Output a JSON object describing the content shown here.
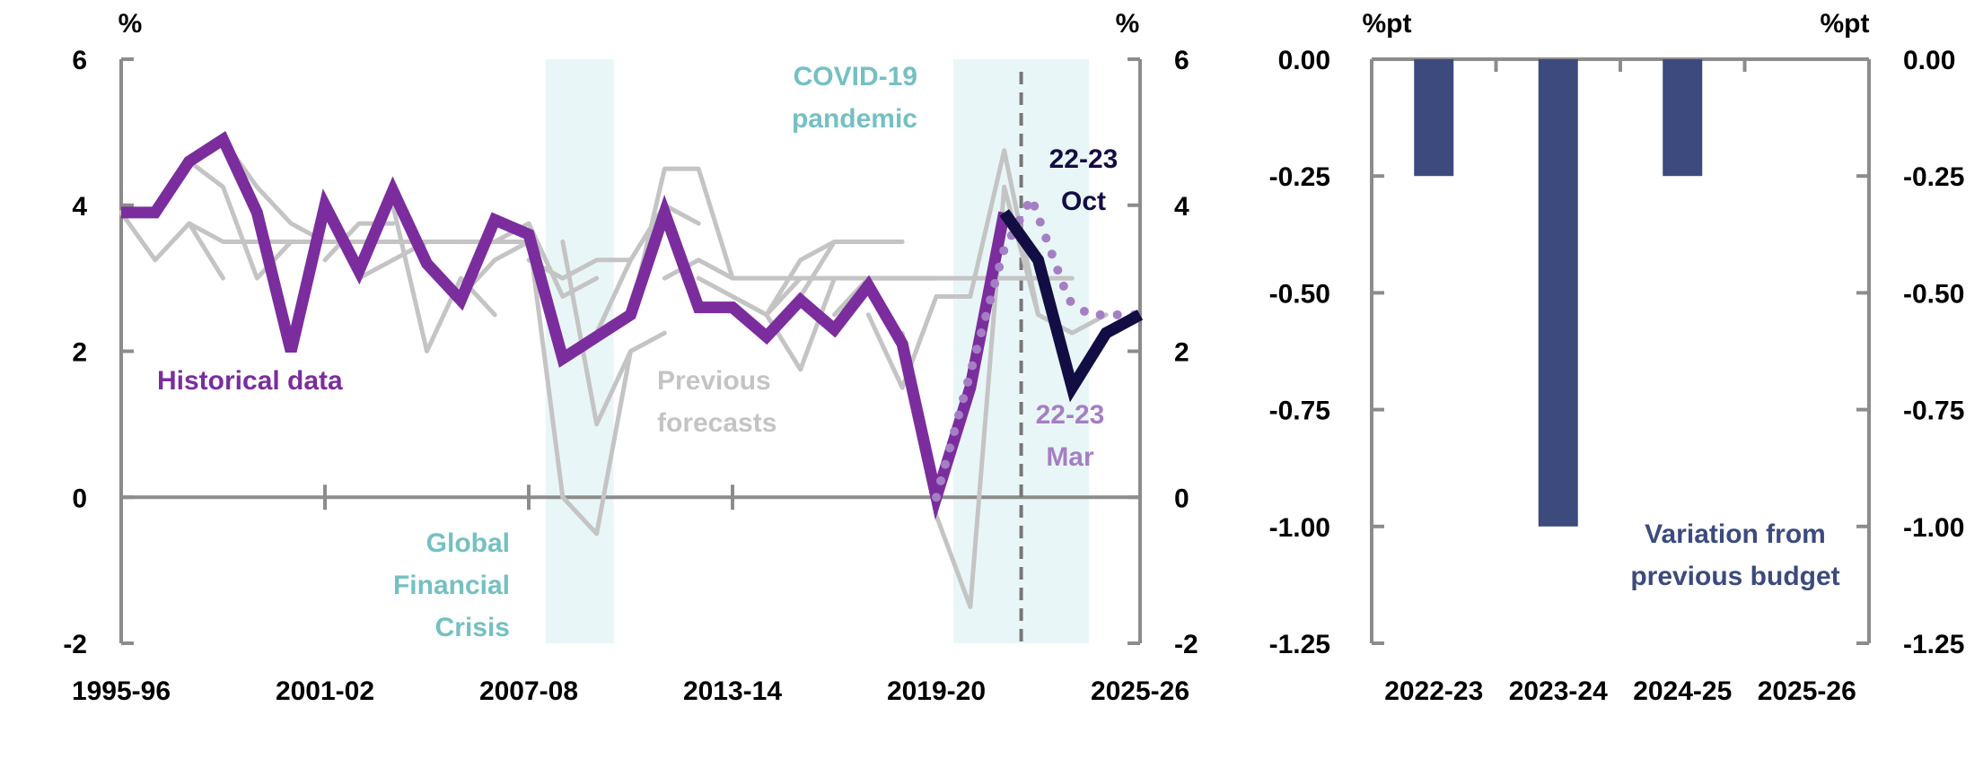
{
  "colors": {
    "historical": "#7b2d9e",
    "previous": "#c4c4c4",
    "oct_forecast": "#120e44",
    "mar_forecast": "#a57fc4",
    "shade": "#e9f6f7",
    "shade_label": "#74c0c2",
    "axis": "#8c8c8c",
    "bar": "#3c4a7d",
    "text": "#000000"
  },
  "chart_data": [
    {
      "type": "line",
      "y_unit_left": "%",
      "y_unit_right": "%",
      "ylim": [
        -2,
        6
      ],
      "y_ticks": [
        -2,
        0,
        2,
        4,
        6
      ],
      "x_range": [
        1995,
        2025
      ],
      "x_tick_years": [
        1995,
        2001,
        2007,
        2013,
        2019,
        2025
      ],
      "x_tick_labels": [
        "1995-96",
        "2001-02",
        "2007-08",
        "2013-14",
        "2019-20",
        "2025-26"
      ],
      "shaded_periods": [
        {
          "label_lines": [
            "Global",
            "Financial",
            "Crisis"
          ],
          "x_start": 2007.5,
          "x_end": 2009.5
        },
        {
          "label_lines": [
            "COVID-19",
            "pandemic"
          ],
          "x_start": 2019.5,
          "x_end": 2023.5
        }
      ],
      "vline_x": 2021.5,
      "series": [
        {
          "name": "Historical data",
          "role": "historical",
          "x": [
            1995,
            1996,
            1997,
            1998,
            1999,
            2000,
            2001,
            2002,
            2003,
            2004,
            2005,
            2006,
            2007,
            2008,
            2009,
            2010,
            2011,
            2012,
            2013,
            2014,
            2015,
            2016,
            2017,
            2018,
            2019,
            2020,
            2021
          ],
          "y": [
            3.9,
            3.9,
            4.6,
            4.9,
            3.9,
            2.0,
            4.0,
            3.1,
            4.2,
            3.2,
            2.7,
            3.8,
            3.6,
            1.9,
            2.2,
            2.5,
            3.9,
            2.6,
            2.6,
            2.2,
            2.7,
            2.3,
            2.9,
            2.1,
            0.0,
            1.5,
            3.9
          ]
        },
        {
          "name": "Previous forecasts",
          "role": "previous",
          "lines": [
            {
              "x": [
                1995,
                1996,
                1997,
                1998
              ],
              "y": [
                3.9,
                3.25,
                3.75,
                3.0
              ]
            },
            {
              "x": [
                1997,
                1998,
                1999,
                2000
              ],
              "y": [
                4.6,
                4.25,
                3.0,
                3.5
              ]
            },
            {
              "x": [
                1998,
                1999,
                2000,
                2001,
                2002
              ],
              "y": [
                4.9,
                4.25,
                3.75,
                3.5,
                3.5
              ]
            },
            {
              "x": [
                1997,
                1998,
                1999,
                2000,
                2001,
                2002,
                2003,
                2004,
                2005,
                2006,
                2007
              ],
              "y": [
                3.75,
                3.5,
                3.5,
                3.5,
                3.5,
                3.5,
                3.5,
                3.5,
                3.5,
                3.5,
                3.5
              ]
            },
            {
              "x": [
                2001,
                2002,
                2003
              ],
              "y": [
                3.25,
                3.75,
                3.75
              ]
            },
            {
              "x": [
                2002,
                2003,
                2004
              ],
              "y": [
                3.0,
                3.25,
                3.5
              ]
            },
            {
              "x": [
                2003,
                2004,
                2005,
                2006
              ],
              "y": [
                4.0,
                2.0,
                3.0,
                2.5
              ]
            },
            {
              "x": [
                2005,
                2006,
                2007
              ],
              "y": [
                2.75,
                3.25,
                3.5
              ]
            },
            {
              "x": [
                2006,
                2007,
                2008,
                2009
              ],
              "y": [
                3.5,
                3.75,
                2.75,
                3.0
              ]
            },
            {
              "x": [
                2007,
                2008,
                2009,
                2010
              ],
              "y": [
                3.25,
                3.0,
                3.25,
                3.25
              ]
            },
            {
              "x": [
                2007,
                2008,
                2009,
                2010
              ],
              "y": [
                3.6,
                0.0,
                -0.5,
                2.0
              ]
            },
            {
              "x": [
                2008,
                2009,
                2010,
                2011
              ],
              "y": [
                3.5,
                1.0,
                2.0,
                2.25
              ]
            },
            {
              "x": [
                2009,
                2010,
                2011,
                2012
              ],
              "y": [
                2.25,
                3.25,
                4.0,
                3.75
              ]
            },
            {
              "x": [
                2010,
                2011,
                2012,
                2013
              ],
              "y": [
                2.5,
                4.5,
                4.5,
                3.0
              ]
            },
            {
              "x": [
                2011,
                2012,
                2013,
                2014,
                2015,
                2016,
                2017,
                2018,
                2019,
                2020,
                2021,
                2022,
                2023
              ],
              "y": [
                3.0,
                3.25,
                3.0,
                3.0,
                3.0,
                3.0,
                3.0,
                3.0,
                3.0,
                3.0,
                3.0,
                3.0,
                3.0
              ]
            },
            {
              "x": [
                2012,
                2013,
                2014,
                2015
              ],
              "y": [
                3.0,
                2.75,
                2.5,
                3.0
              ]
            },
            {
              "x": [
                2013,
                2014,
                2015,
                2016
              ],
              "y": [
                2.75,
                2.5,
                1.75,
                3.0
              ]
            },
            {
              "x": [
                2014,
                2015,
                2016,
                2017
              ],
              "y": [
                2.5,
                3.25,
                3.5,
                3.5
              ]
            },
            {
              "x": [
                2015,
                2016,
                2017,
                2018
              ],
              "y": [
                2.75,
                3.5,
                3.5,
                3.5
              ]
            },
            {
              "x": [
                2016,
                2017,
                2018,
                2019
              ],
              "y": [
                2.5,
                3.0,
                3.0,
                3.0
              ]
            },
            {
              "x": [
                2017,
                2018,
                2019,
                2020
              ],
              "y": [
                2.5,
                1.5,
                2.75,
                2.75
              ]
            },
            {
              "x": [
                2018,
                2019,
                2020,
                2021
              ],
              "y": [
                2.25,
                -0.25,
                -1.5,
                4.25
              ]
            },
            {
              "x": [
                2019,
                2020,
                2021,
                2022
              ],
              "y": [
                2.75,
                2.75,
                4.75,
                2.5
              ]
            },
            {
              "x": [
                2021,
                2022,
                2023,
                2024
              ],
              "y": [
                4.25,
                2.5,
                2.25,
                2.5
              ]
            }
          ]
        },
        {
          "name": "22-23 Mar",
          "role": "mar_forecast",
          "style": "dotted",
          "x": [
            2019.0,
            2021.0,
            2021.8,
            2022.9,
            2023.5,
            2025.0
          ],
          "y": [
            0.0,
            3.4,
            4.1,
            2.7,
            2.5,
            2.5
          ]
        },
        {
          "name": "22-23 Oct",
          "role": "oct_forecast",
          "x": [
            2021,
            2022,
            2023,
            2024,
            2025
          ],
          "y": [
            3.9,
            3.25,
            1.5,
            2.25,
            2.5
          ]
        }
      ],
      "labels": [
        {
          "lines": [
            "Historical data"
          ],
          "role": "historical"
        },
        {
          "lines": [
            "Previous",
            "forecasts"
          ],
          "role": "previous"
        },
        {
          "lines": [
            "22-23",
            "Oct"
          ],
          "role": "oct_forecast"
        },
        {
          "lines": [
            "22-23",
            "Mar"
          ],
          "role": "mar_forecast"
        }
      ]
    },
    {
      "type": "bar",
      "y_unit_left": "%pt",
      "y_unit_right": "%pt",
      "ylim": [
        -1.25,
        0.0
      ],
      "y_ticks": [
        0.0,
        -0.25,
        -0.5,
        -0.75,
        -1.0,
        -1.25
      ],
      "y_tick_labels": [
        "0.00",
        "-0.25",
        "-0.50",
        "-0.75",
        "-1.00",
        "-1.25"
      ],
      "categories": [
        "2022-23",
        "2023-24",
        "2024-25",
        "2025-26"
      ],
      "values": [
        -0.25,
        -1.0,
        -0.25,
        0.0
      ],
      "label_lines": [
        "Variation from",
        "previous budget"
      ]
    }
  ]
}
